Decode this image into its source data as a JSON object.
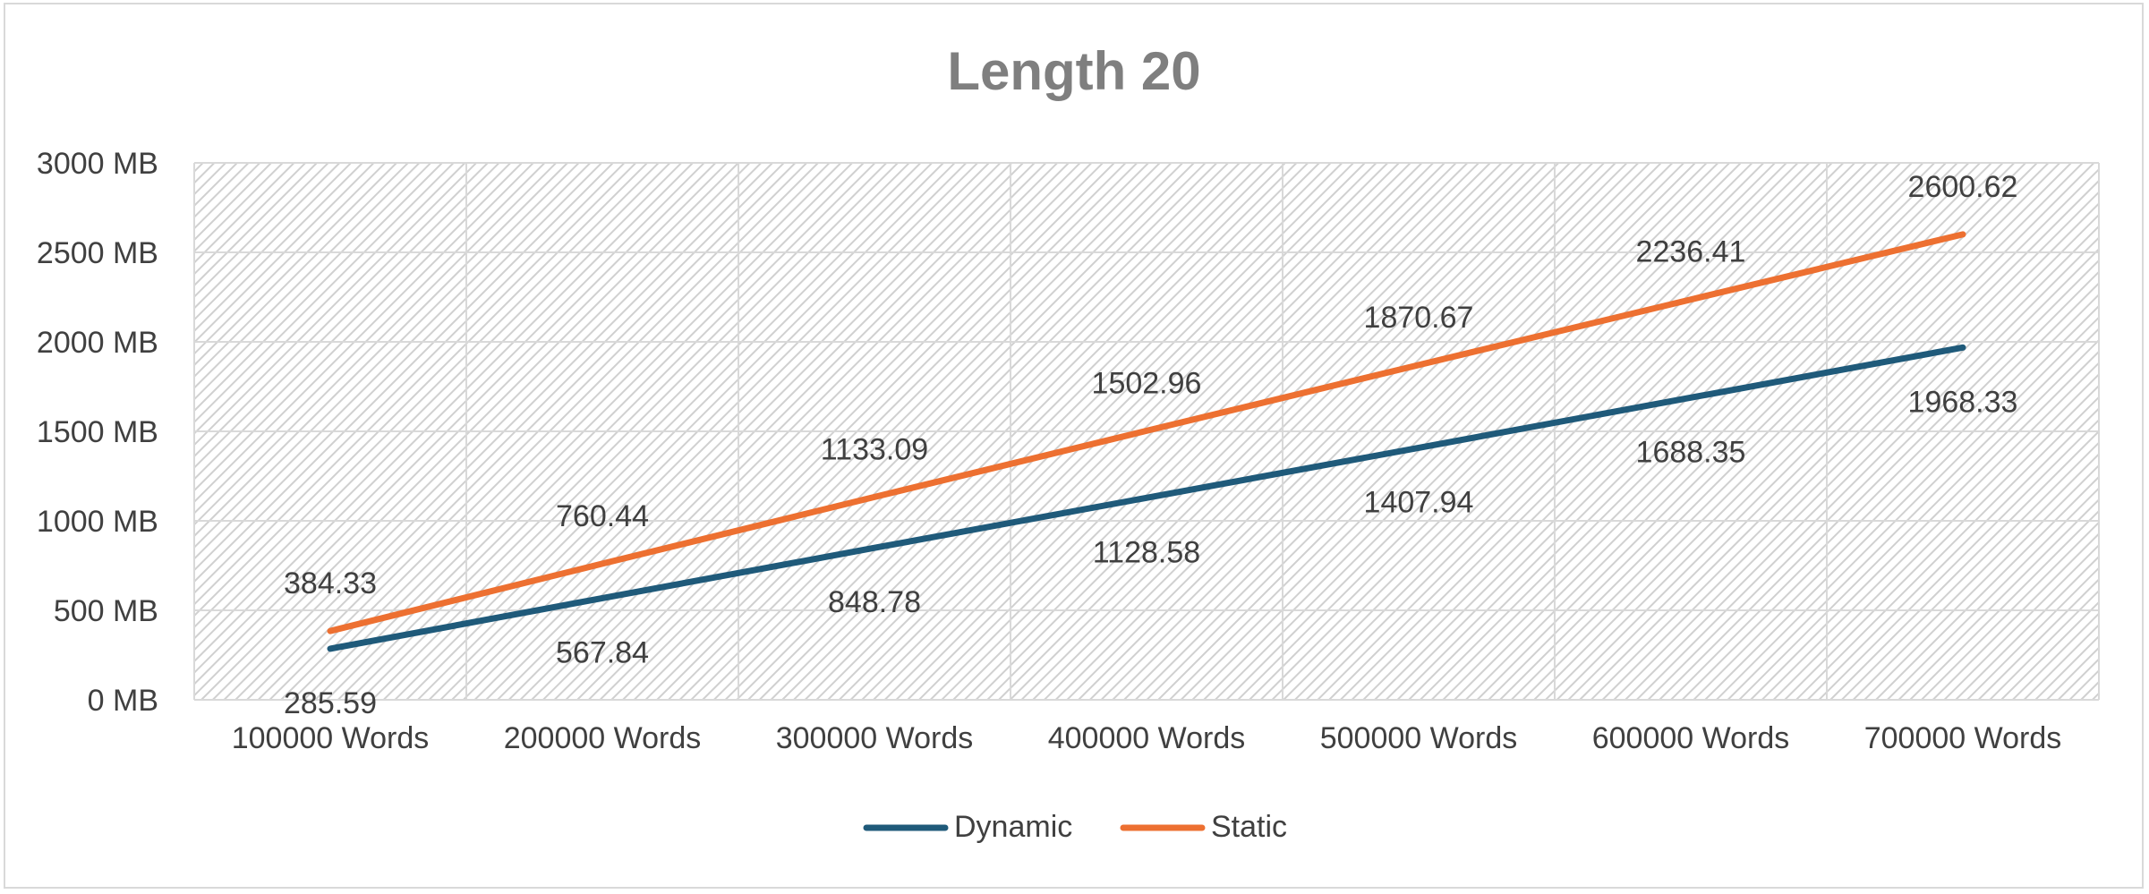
{
  "chart_data": {
    "type": "line",
    "title": "Length 20",
    "categories": [
      "100000 Words",
      "200000 Words",
      "300000 Words",
      "400000 Words",
      "500000 Words",
      "600000 Words",
      "700000 Words"
    ],
    "series": [
      {
        "name": "Dynamic",
        "color": "#1f5a7a",
        "values": [
          285.59,
          567.84,
          848.78,
          1128.58,
          1407.94,
          1688.35,
          1968.33
        ]
      },
      {
        "name": "Static",
        "color": "#ed7031",
        "values": [
          384.33,
          760.44,
          1133.09,
          1502.96,
          1870.67,
          2236.41,
          2600.62
        ]
      }
    ],
    "y_ticks": [
      "0 MB",
      "500 MB",
      "1000 MB",
      "1500 MB",
      "2000 MB",
      "2500 MB",
      "3000 MB"
    ],
    "ylim": [
      0,
      3000
    ],
    "grid": true,
    "legend_position": "bottom"
  }
}
